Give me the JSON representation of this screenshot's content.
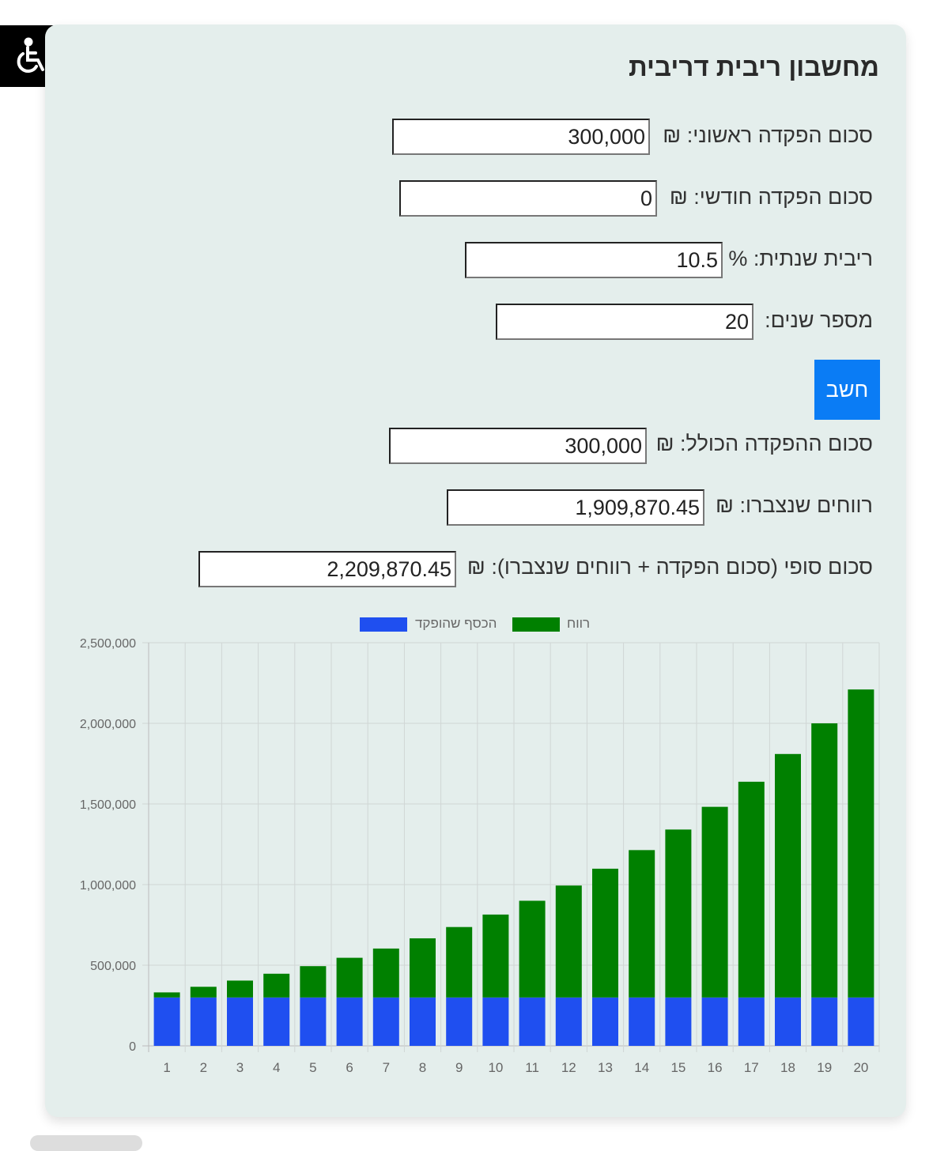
{
  "accessibility": {
    "icon": "wheelchair-icon"
  },
  "title": "מחשבון ריבית דריבית",
  "fields": [
    {
      "label": "סכום הפקדה ראשוני: ₪",
      "value": "300,000"
    },
    {
      "label": "סכום הפקדה חודשי: ₪",
      "value": "0"
    },
    {
      "label": "ריבית שנתית: %",
      "value": "10.5"
    },
    {
      "label": "מספר שנים:",
      "value": "20"
    }
  ],
  "calculate_label": "חשב",
  "results": [
    {
      "label": "סכום ההפקדה הכולל: ₪",
      "value": "300,000"
    },
    {
      "label": "רווחים שנצברו: ₪",
      "value": "1,909,870.45"
    },
    {
      "label": "סכום סופי (סכום הפקדה + רווחים שנצברו): ₪",
      "value": "2,209,870.45"
    }
  ],
  "chart_data": {
    "type": "bar",
    "stacked": true,
    "categories": [
      "1",
      "2",
      "3",
      "4",
      "5",
      "6",
      "7",
      "8",
      "9",
      "10",
      "11",
      "12",
      "13",
      "14",
      "15",
      "16",
      "17",
      "18",
      "19",
      "20"
    ],
    "series": [
      {
        "name": "הכסף שהופקד",
        "color": "#1f4ff0",
        "values": [
          300000,
          300000,
          300000,
          300000,
          300000,
          300000,
          300000,
          300000,
          300000,
          300000,
          300000,
          300000,
          300000,
          300000,
          300000,
          300000,
          300000,
          300000,
          300000,
          300000
        ]
      },
      {
        "name": "רווח",
        "color": "#008000",
        "values": [
          31500,
          66307.5,
          104769.79,
          147270.62,
          194234.03,
          246128.6,
          303472.1,
          366836.67,
          436854.52,
          514224.24,
          599717.79,
          694188.16,
          798577.92,
          913928.6,
          1041391.1,
          1182237.16,
          1337872.06,
          1509848.63,
          1699882.74,
          1909870.45
        ]
      }
    ],
    "yticks": [
      "0",
      "500,000",
      "1,000,000",
      "1,500,000",
      "2,000,000",
      "2,500,000"
    ],
    "ylim": [
      0,
      2500000
    ],
    "grid": true,
    "legend": "top"
  }
}
